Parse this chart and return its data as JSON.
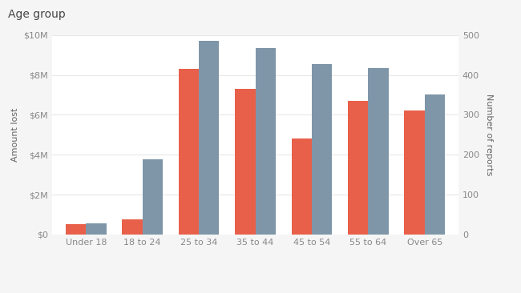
{
  "categories": [
    "Under 18",
    "18 to 24",
    "25 to 34",
    "35 to 44",
    "45 to 54",
    "55 to 64",
    "Over 65"
  ],
  "amount_lost": [
    500000,
    750000,
    8300000,
    7300000,
    4800000,
    6700000,
    6200000
  ],
  "num_reports": [
    28,
    188,
    485,
    468,
    428,
    418,
    352
  ],
  "bar_color_amount": "#e8604a",
  "bar_color_reports": "#7f96a8",
  "left_ylabel": "Amount lost",
  "right_ylabel": "Number of reports",
  "title": "Age group",
  "header_bg": "#eeeeee",
  "chart_bg": "#ffffff",
  "outer_bg": "#f5f5f5",
  "ylim_left": [
    0,
    10000000
  ],
  "ylim_right": [
    0,
    500
  ],
  "left_ticks": [
    0,
    2000000,
    4000000,
    6000000,
    8000000,
    10000000
  ],
  "right_ticks": [
    0,
    100,
    200,
    300,
    400,
    500
  ],
  "legend_labels": [
    "Amount lost",
    "Number of reports"
  ],
  "grid_color": "#e8e8e8",
  "bar_width": 0.36,
  "title_fontsize": 10,
  "axis_fontsize": 8,
  "tick_fontsize": 8,
  "legend_fontsize": 8,
  "tick_color": "#888888",
  "label_color": "#666666"
}
